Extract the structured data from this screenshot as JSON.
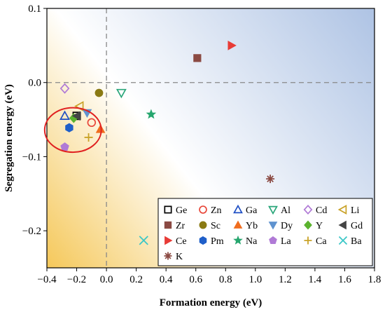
{
  "chart_data": {
    "type": "scatter",
    "xlabel": "Formation energy (eV)",
    "ylabel": "Segregation energy (eV)",
    "xlim": [
      -0.4,
      1.8
    ],
    "ylim": [
      -0.25,
      0.1
    ],
    "x_ticks": [
      "−0.4",
      "−0.2",
      "0.0",
      "0.2",
      "0.4",
      "0.6",
      "0.8",
      "1.0",
      "1.2",
      "1.4",
      "1.6",
      "1.8"
    ],
    "y_ticks": [
      "0.1",
      "0.0",
      "−0.1",
      "−0.2"
    ],
    "legend_position": "bottom-right",
    "legend_columns": 6,
    "reference_lines": {
      "x": 0,
      "y": 0,
      "style": "dashed",
      "color": "#888888"
    },
    "background": {
      "type": "gradient",
      "colors": [
        "#f5c85a",
        "#ffffff",
        "#aec3e4"
      ]
    },
    "highlight": {
      "type": "ellipse",
      "color": "#e02020",
      "center": [
        -0.225,
        -0.064
      ],
      "radius_x": 0.19,
      "radius_y": 0.03
    },
    "series": [
      {
        "name": "Ge",
        "marker": "square-open",
        "color": "#000000",
        "x": [
          -0.2
        ],
        "y": [
          -0.045
        ]
      },
      {
        "name": "Zn",
        "marker": "circle-open",
        "color": "#e8473a",
        "x": [
          -0.1
        ],
        "y": [
          -0.054
        ]
      },
      {
        "name": "Ga",
        "marker": "triangle-up-open",
        "color": "#1f4fc4",
        "x": [
          -0.28
        ],
        "y": [
          -0.045
        ]
      },
      {
        "name": "Al",
        "marker": "triangle-down-open",
        "color": "#2aa67a",
        "x": [
          0.1
        ],
        "y": [
          -0.014
        ]
      },
      {
        "name": "Cd",
        "marker": "diamond-open",
        "color": "#b07ad6",
        "x": [
          -0.28
        ],
        "y": [
          -0.008
        ]
      },
      {
        "name": "Li",
        "marker": "triangle-left-open",
        "color": "#c9a227",
        "x": [
          -0.18
        ],
        "y": [
          -0.032
        ]
      },
      {
        "name": "Zr",
        "marker": "square",
        "color": "#8b4a43",
        "x": [
          0.61
        ],
        "y": [
          0.033
        ]
      },
      {
        "name": "Sc",
        "marker": "circle",
        "color": "#8a7a14",
        "x": [
          -0.05
        ],
        "y": [
          -0.014
        ]
      },
      {
        "name": "Yb",
        "marker": "triangle-up",
        "color": "#f06d1e",
        "x": [
          -0.04
        ],
        "y": [
          -0.063
        ]
      },
      {
        "name": "Dy",
        "marker": "triangle-down",
        "color": "#5f93cf",
        "x": [
          -0.13
        ],
        "y": [
          -0.041
        ]
      },
      {
        "name": "Y",
        "marker": "diamond",
        "color": "#5bb32e",
        "x": [
          -0.22
        ],
        "y": [
          -0.048
        ]
      },
      {
        "name": "Gd",
        "marker": "triangle-left",
        "color": "#454545",
        "x": [
          -0.2
        ],
        "y": [
          -0.045
        ]
      },
      {
        "name": "Ce",
        "marker": "triangle-right",
        "color": "#e83b36",
        "x": [
          0.84
        ],
        "y": [
          0.05
        ]
      },
      {
        "name": "Pm",
        "marker": "hexagon",
        "color": "#1f5fc9",
        "x": [
          -0.25
        ],
        "y": [
          -0.061
        ]
      },
      {
        "name": "Na",
        "marker": "star",
        "color": "#26a66e",
        "x": [
          0.3
        ],
        "y": [
          -0.043
        ]
      },
      {
        "name": "La",
        "marker": "pentagon",
        "color": "#b07ad6",
        "x": [
          -0.28
        ],
        "y": [
          -0.087
        ]
      },
      {
        "name": "Ca",
        "marker": "plus",
        "color": "#c9a227",
        "x": [
          -0.12
        ],
        "y": [
          -0.074
        ]
      },
      {
        "name": "Ba",
        "marker": "x",
        "color": "#3cc7c7",
        "x": [
          0.25
        ],
        "y": [
          -0.213
        ]
      },
      {
        "name": "K",
        "marker": "asterisk",
        "color": "#8b4a43",
        "x": [
          1.1
        ],
        "y": [
          -0.13
        ]
      }
    ]
  }
}
